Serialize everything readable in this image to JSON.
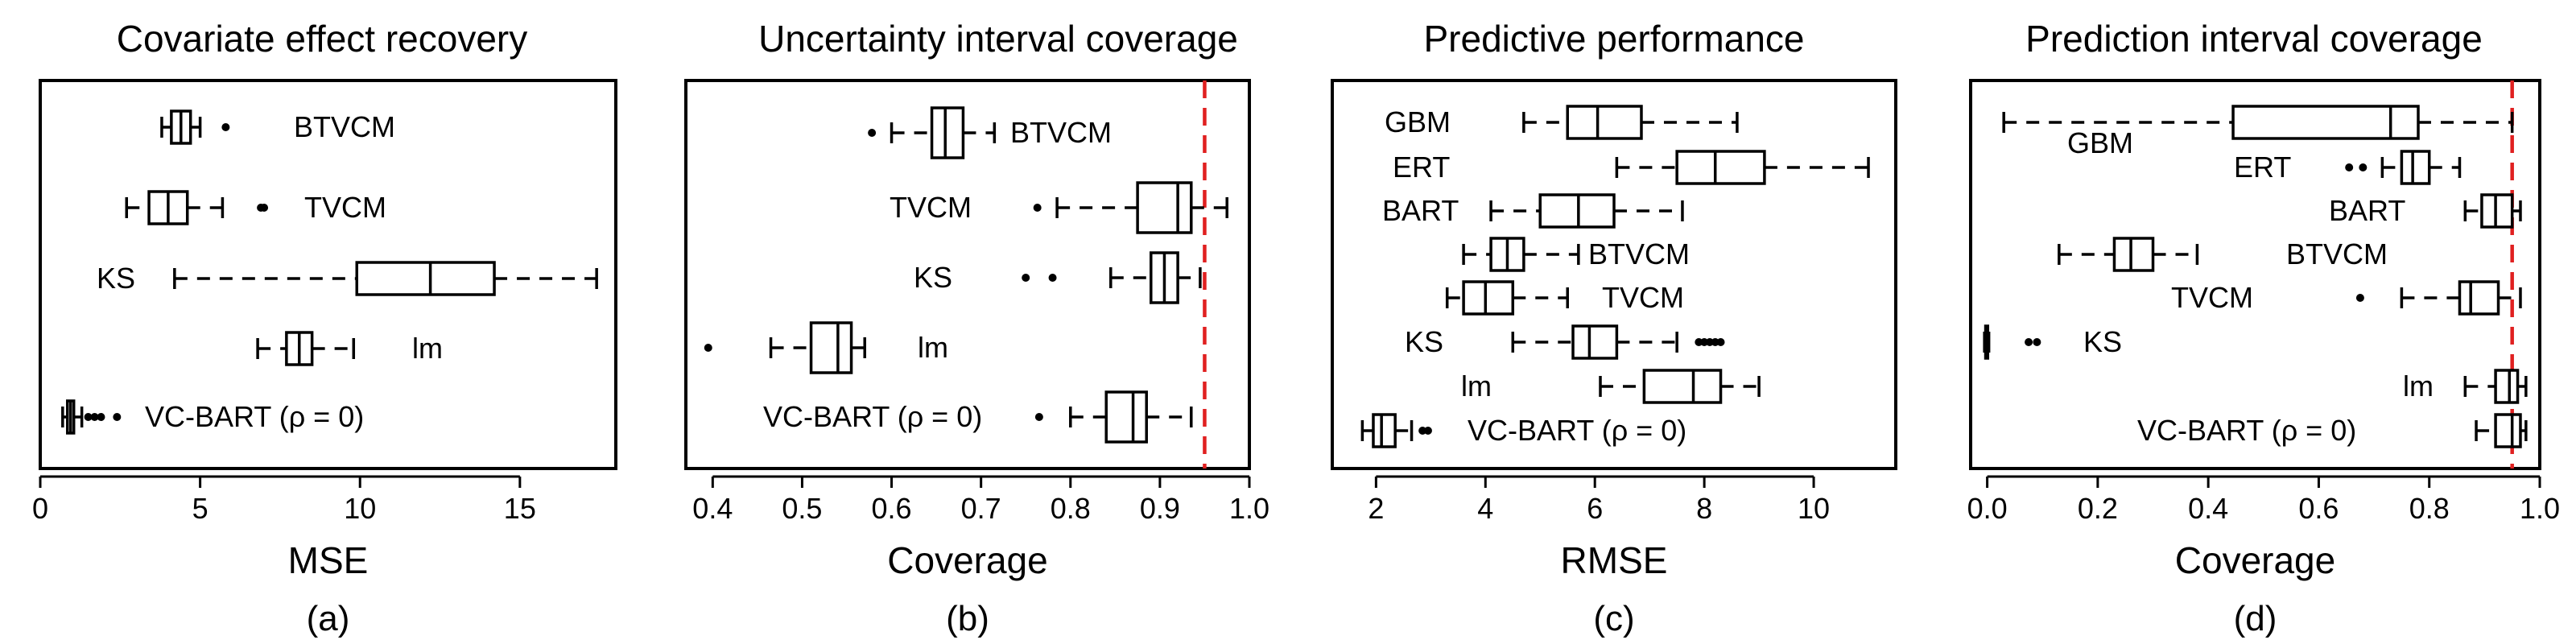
{
  "chart_data": [
    {
      "type": "boxplot",
      "title": "Covariate effect recovery",
      "xlabel": "MSE",
      "sublabel": "(a)",
      "xlim": [
        0,
        18
      ],
      "xticks": [
        0,
        5,
        10,
        15
      ],
      "xtick_labels": [
        "0",
        "5",
        "10",
        "15"
      ],
      "groups": [
        {
          "label": "BTVCM",
          "min": 3.8,
          "q1": 4.1,
          "median": 4.4,
          "q3": 4.7,
          "max": 5.0,
          "outliers": [
            5.8
          ]
        },
        {
          "label": "TVCM",
          "min": 2.7,
          "q1": 3.4,
          "median": 4.0,
          "q3": 4.6,
          "max": 5.7,
          "outliers": [
            6.9,
            7.0
          ]
        },
        {
          "label": "KS",
          "min": 4.2,
          "q1": 9.9,
          "median": 12.2,
          "q3": 14.2,
          "max": 17.4,
          "outliers": []
        },
        {
          "label": "lm",
          "min": 6.8,
          "q1": 7.7,
          "median": 8.1,
          "q3": 8.5,
          "max": 9.8,
          "outliers": []
        },
        {
          "label": "VC-BART (ρ = 0)",
          "min": 0.7,
          "q1": 0.85,
          "median": 0.95,
          "q3": 1.05,
          "max": 1.3,
          "outliers": [
            1.5,
            1.7,
            1.9,
            2.4
          ]
        }
      ]
    },
    {
      "type": "boxplot",
      "title": "Uncertainty interval coverage",
      "xlabel": "Coverage",
      "sublabel": "(b)",
      "xlim": [
        0.37,
        1.0
      ],
      "xticks": [
        0.4,
        0.5,
        0.6,
        0.7,
        0.8,
        0.9,
        1.0
      ],
      "xtick_labels": [
        "0.4",
        "0.5",
        "0.6",
        "0.7",
        "0.8",
        "0.9",
        "1.0"
      ],
      "reference_line": 0.95,
      "groups": [
        {
          "label": "BTVCM",
          "min": 0.6,
          "q1": 0.645,
          "median": 0.66,
          "q3": 0.68,
          "max": 0.715,
          "outliers": [
            0.578
          ]
        },
        {
          "label": "TVCM",
          "min": 0.785,
          "q1": 0.875,
          "median": 0.92,
          "q3": 0.935,
          "max": 0.975,
          "outliers": [
            0.763
          ]
        },
        {
          "label": "KS",
          "min": 0.845,
          "q1": 0.89,
          "median": 0.905,
          "q3": 0.92,
          "max": 0.945,
          "outliers": [
            0.75,
            0.78
          ]
        },
        {
          "label": "lm",
          "min": 0.465,
          "q1": 0.51,
          "median": 0.54,
          "q3": 0.555,
          "max": 0.57,
          "outliers": [
            0.395
          ]
        },
        {
          "label": "VC-BART (ρ = 0)",
          "min": 0.8,
          "q1": 0.84,
          "median": 0.87,
          "q3": 0.885,
          "max": 0.935,
          "outliers": [
            0.765
          ]
        }
      ]
    },
    {
      "type": "boxplot",
      "title": "Predictive performance",
      "xlabel": "RMSE",
      "sublabel": "(c)",
      "xlim": [
        1.2,
        11.5
      ],
      "xticks": [
        2,
        4,
        6,
        8,
        10
      ],
      "xtick_labels": [
        "2",
        "4",
        "6",
        "8",
        "10"
      ],
      "groups": [
        {
          "label": "GBM",
          "min": 4.7,
          "q1": 5.5,
          "median": 6.05,
          "q3": 6.85,
          "max": 8.6,
          "outliers": []
        },
        {
          "label": "ERT",
          "min": 6.4,
          "q1": 7.5,
          "median": 8.2,
          "q3": 9.1,
          "max": 11.0,
          "outliers": []
        },
        {
          "label": "BART",
          "min": 4.1,
          "q1": 5.0,
          "median": 5.7,
          "q3": 6.35,
          "max": 7.6,
          "outliers": []
        },
        {
          "label": "BTVCM",
          "min": 3.6,
          "q1": 4.1,
          "median": 4.4,
          "q3": 4.7,
          "max": 5.7,
          "outliers": []
        },
        {
          "label": "TVCM",
          "min": 3.3,
          "q1": 3.6,
          "median": 4.0,
          "q3": 4.5,
          "max": 5.5,
          "outliers": []
        },
        {
          "label": "KS",
          "min": 4.5,
          "q1": 5.6,
          "median": 5.9,
          "q3": 6.4,
          "max": 7.5,
          "outliers": [
            7.9,
            8.0,
            8.1,
            8.2,
            8.3
          ]
        },
        {
          "label": "lm",
          "min": 6.1,
          "q1": 6.9,
          "median": 7.8,
          "q3": 8.3,
          "max": 9.0,
          "outliers": []
        },
        {
          "label": "VC-BART (ρ = 0)",
          "min": 1.75,
          "q1": 1.95,
          "median": 2.1,
          "q3": 2.35,
          "max": 2.65,
          "outliers": [
            2.85,
            2.95
          ]
        }
      ]
    },
    {
      "type": "boxplot",
      "title": "Prediction interval coverage",
      "xlabel": "Coverage",
      "sublabel": "(d)",
      "xlim": [
        -0.03,
        1.0
      ],
      "xticks": [
        0.0,
        0.2,
        0.4,
        0.6,
        0.8,
        1.0
      ],
      "xtick_labels": [
        "0.0",
        "0.2",
        "0.4",
        "0.6",
        "0.8",
        "1.0"
      ],
      "reference_line": 0.95,
      "groups": [
        {
          "label": "GBM",
          "min": 0.03,
          "q1": 0.445,
          "median": 0.73,
          "q3": 0.78,
          "max": 0.95,
          "outliers": []
        },
        {
          "label": "ERT",
          "min": 0.715,
          "q1": 0.75,
          "median": 0.77,
          "q3": 0.8,
          "max": 0.855,
          "outliers": [
            0.655,
            0.68
          ]
        },
        {
          "label": "BART",
          "min": 0.865,
          "q1": 0.895,
          "median": 0.92,
          "q3": 0.95,
          "max": 0.965,
          "outliers": []
        },
        {
          "label": "BTVCM",
          "min": 0.13,
          "q1": 0.23,
          "median": 0.26,
          "q3": 0.3,
          "max": 0.38,
          "outliers": []
        },
        {
          "label": "TVCM",
          "min": 0.75,
          "q1": 0.855,
          "median": 0.875,
          "q3": 0.925,
          "max": 0.965,
          "outliers": [
            0.675
          ]
        },
        {
          "label": "KS",
          "min": -0.005,
          "q1": -0.003,
          "median": -0.001,
          "q3": 0.001,
          "max": 0.003,
          "outliers": [
            0.075,
            0.09
          ]
        },
        {
          "label": "lm",
          "min": 0.865,
          "q1": 0.92,
          "median": 0.945,
          "q3": 0.96,
          "max": 0.975,
          "outliers": []
        },
        {
          "label": "VC-BART (ρ = 0)",
          "min": 0.885,
          "q1": 0.92,
          "median": 0.95,
          "q3": 0.965,
          "max": 0.975,
          "outliers": []
        }
      ]
    }
  ]
}
